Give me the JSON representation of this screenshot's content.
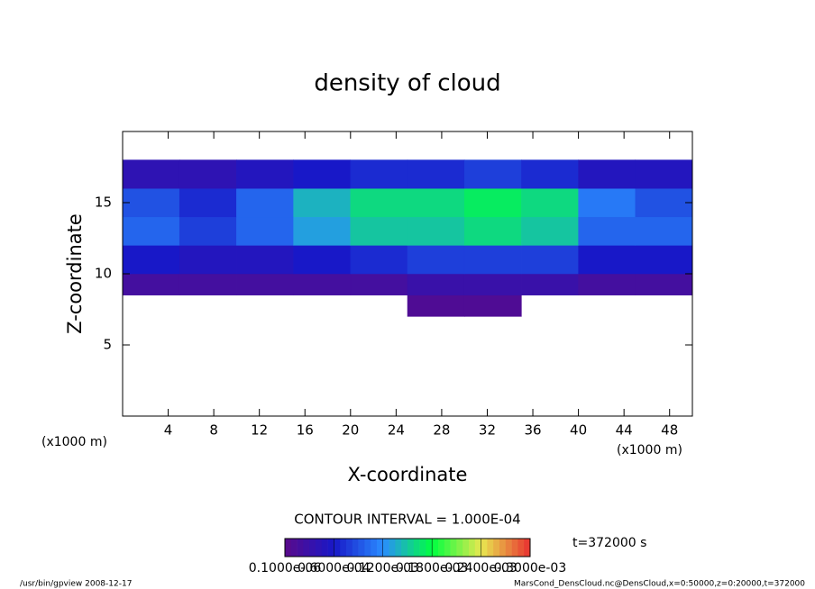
{
  "chart_data": {
    "type": "heatmap",
    "title": "density of cloud",
    "x_label": "X-coordinate",
    "y_label": "Z-coordinate",
    "x_unit": "(x1000 m)",
    "y_unit": "(x1000 m)",
    "xlim": [
      0,
      50
    ],
    "xticks": [
      4,
      8,
      12,
      16,
      20,
      24,
      28,
      32,
      36,
      40,
      44,
      48
    ],
    "ylim": [
      0,
      20
    ],
    "yticks": [
      5,
      10,
      15
    ],
    "x_bins": [
      0,
      5,
      10,
      15,
      20,
      25,
      30,
      35,
      40,
      45,
      50
    ],
    "z_bins": [
      7,
      8.5,
      10,
      12,
      14,
      16,
      18
    ],
    "values": [
      [
        null,
        null,
        null,
        null,
        null,
        1e-05,
        1e-05,
        null,
        null,
        null
      ],
      [
        2e-05,
        2e-05,
        2e-05,
        2e-05,
        2e-05,
        3e-05,
        3e-05,
        3e-05,
        2e-05,
        2e-05
      ],
      [
        6e-05,
        5e-05,
        5e-05,
        6e-05,
        7e-05,
        8e-05,
        8e-05,
        8e-05,
        6e-05,
        6e-05
      ],
      [
        0.0001,
        8e-05,
        0.0001,
        0.00013,
        0.00015,
        0.00015,
        0.00016,
        0.00015,
        0.0001,
        0.0001
      ],
      [
        9e-05,
        7e-05,
        0.0001,
        0.00014,
        0.00016,
        0.00016,
        0.00017,
        0.00016,
        0.00011,
        9e-05
      ],
      [
        4e-05,
        4e-05,
        5e-05,
        6e-05,
        7e-05,
        7e-05,
        8e-05,
        7e-05,
        5e-05,
        5e-05
      ]
    ],
    "colors": [
      "#5a0a8a",
      "#1818c8",
      "#2a8cff",
      "#00ff40",
      "#e8e850",
      "#e83030"
    ],
    "contour_interval": "CONTOUR INTERVAL = 1.000E-04",
    "time_label": "t=372000 s",
    "colorbar_ticks": [
      {
        "value": 1e-07,
        "label": "0.1000e-06"
      },
      {
        "value": 6e-05,
        "label": "0.6000e-04"
      },
      {
        "value": 0.00012,
        "label": "0.1200e-03"
      },
      {
        "value": 0.00018,
        "label": "0.1800e-03"
      },
      {
        "value": 0.00024,
        "label": "0.2400e-03"
      },
      {
        "value": 0.0003,
        "label": "0.3000e-03"
      }
    ],
    "footer_left": "/usr/bin/gpview   2008-12-17",
    "footer_right": "MarsCond_DensCloud.nc@DensCloud,x=0:50000,z=0:20000,t=372000"
  }
}
